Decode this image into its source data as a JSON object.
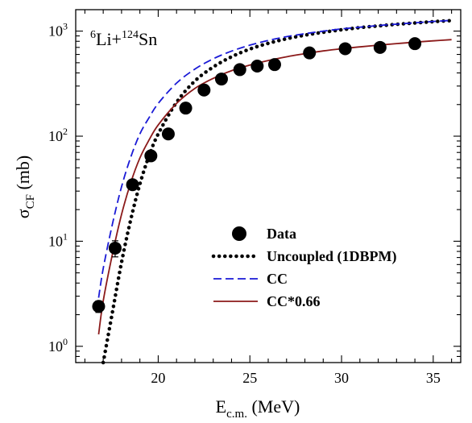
{
  "chart_data": {
    "type": "scatter",
    "annotation": {
      "base": "Li+",
      "sup1": "6",
      "sup2": "124",
      "tail": "Sn"
    },
    "xlabel": {
      "main": "E",
      "sub": "c.m.",
      "unit": " (MeV)"
    },
    "ylabel": {
      "main": "σ",
      "sub": "CF",
      "unit": " (mb)"
    },
    "xlim": [
      15.5,
      36.5
    ],
    "ylim": [
      0.7,
      1600
    ],
    "yscale": "log",
    "x_ticks": [
      20,
      25,
      30,
      35
    ],
    "x_tick_labels": [
      "20",
      "25",
      "30",
      "35"
    ],
    "y_ticks": [
      1,
      10,
      100,
      1000
    ],
    "y_tick_labels": [
      {
        "base": "10",
        "exp": "0"
      },
      {
        "base": "10",
        "exp": "1"
      },
      {
        "base": "10",
        "exp": "2"
      },
      {
        "base": "10",
        "exp": "3"
      }
    ],
    "grid": false,
    "legend_position": "lower-right",
    "series": [
      {
        "name": "Data",
        "kind": "points",
        "color": "#000000",
        "x": [
          16.75,
          17.65,
          18.6,
          19.6,
          20.55,
          21.5,
          22.5,
          23.45,
          24.45,
          25.4,
          26.35,
          28.25,
          30.2,
          32.1,
          34.0
        ],
        "y": [
          2.4,
          8.6,
          34.5,
          65,
          105,
          185,
          275,
          350,
          430,
          465,
          480,
          620,
          680,
          700,
          760
        ],
        "yerr": [
          0.3,
          1.5,
          3.5,
          5,
          8,
          14,
          20,
          25,
          30,
          30,
          30,
          40,
          40,
          45,
          50
        ]
      },
      {
        "name": "Uncoupled (1DBPM)",
        "kind": "dotted",
        "color": "#000000",
        "x": [
          17.0,
          17.5,
          18.0,
          18.5,
          19.0,
          19.5,
          20.0,
          21.0,
          22.0,
          23.0,
          24.0,
          25.0,
          26.0,
          27.0,
          28.0,
          29.0,
          30.0,
          31.0,
          32.0,
          33.0,
          34.0,
          35.0,
          36.0
        ],
        "y": [
          0.7,
          2.1,
          6.3,
          16,
          35,
          65,
          105,
          210,
          335,
          455,
          570,
          675,
          765,
          845,
          915,
          975,
          1030,
          1080,
          1120,
          1160,
          1195,
          1230,
          1260
        ]
      },
      {
        "name": "CC",
        "kind": "dashed",
        "color": "#1a1ad6",
        "x": [
          16.75,
          17.0,
          17.5,
          18.0,
          18.5,
          19.0,
          19.5,
          20.0,
          21.0,
          22.0,
          23.0,
          24.0,
          25.0,
          26.0,
          27.0,
          28.0,
          29.0,
          30.0,
          31.0,
          32.0,
          33.0,
          34.0,
          35.0,
          36.0
        ],
        "y": [
          2.9,
          5.5,
          14.5,
          33,
          63,
          105,
          150,
          205,
          320,
          435,
          545,
          645,
          735,
          815,
          885,
          945,
          1000,
          1050,
          1090,
          1130,
          1165,
          1200,
          1235,
          1265
        ]
      },
      {
        "name": "CC*0.66",
        "kind": "solid",
        "color": "#8b1a1a",
        "x": [
          16.75,
          17.0,
          17.5,
          18.0,
          18.5,
          19.0,
          19.5,
          20.0,
          21.0,
          22.0,
          23.0,
          24.0,
          25.0,
          26.0,
          27.0,
          28.0,
          29.0,
          30.0,
          31.0,
          32.0,
          33.0,
          34.0,
          35.0,
          36.0
        ],
        "y": [
          1.3,
          2.7,
          7.5,
          18,
          36,
          62,
          92,
          128,
          205,
          285,
          355,
          420,
          475,
          525,
          570,
          610,
          648,
          680,
          708,
          735,
          760,
          785,
          808,
          830
        ]
      }
    ]
  }
}
